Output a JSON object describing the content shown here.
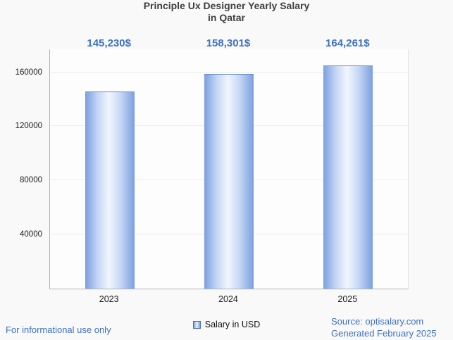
{
  "title": {
    "line1": "Principle Ux Designer Yearly Salary",
    "line2": "in Qatar"
  },
  "chart_data": {
    "type": "bar",
    "title": "Principle Ux Designer Yearly Salary in Qatar",
    "categories": [
      "2023",
      "2024",
      "2025"
    ],
    "values": [
      145230,
      158301,
      164261
    ],
    "value_labels": [
      "145,230$",
      "158,301$",
      "164,261$"
    ],
    "series_name": "Salary in USD",
    "xlabel": "",
    "ylabel": "",
    "ylim": [
      0,
      177000
    ],
    "yticks": [
      40000,
      80000,
      120000,
      160000
    ],
    "ytick_labels": [
      "40000",
      "80000",
      "120000",
      "160000"
    ],
    "grid": true,
    "legend": [
      "Salary in USD"
    ],
    "legend_position": "bottom"
  },
  "footer": {
    "disclaimer": "For informational use only",
    "source": "Source: optisalary.com",
    "generated": "Generated February 2025"
  },
  "colors": {
    "accent_blue": "#3e71c4",
    "bar_blue": "#7b9fe0",
    "axis_gray": "#b3b3b3"
  }
}
